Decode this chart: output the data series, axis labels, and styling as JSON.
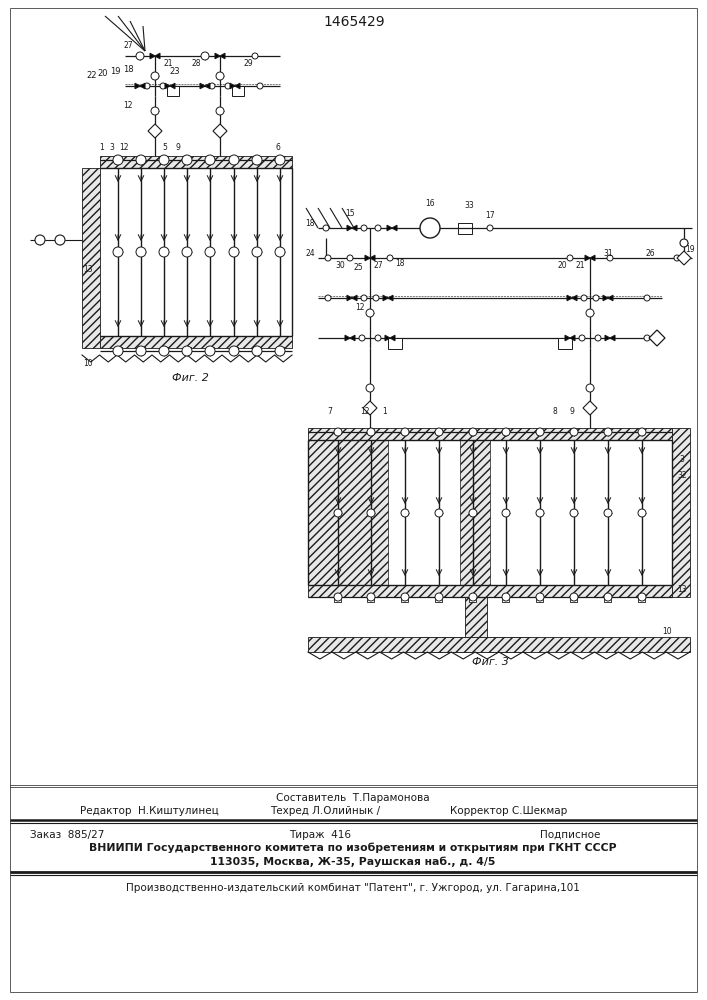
{
  "patent_number": "1465429",
  "bg_color": "#ffffff",
  "line_color": "#1a1a1a",
  "fig2_caption": "Фиг. 2",
  "fig3_caption": "Фиг. 3",
  "footer_line0_center": "Составитель  Т.Парамонова",
  "footer_line1_left": "Редактор  Н.Киштулинец",
  "footer_line1_center": "Техред Л.Олийнык /",
  "footer_line1_center2": "Корректор С.Шекмар",
  "footer_line2_left": "Заказ  885/27",
  "footer_line2_center": "Тираж  416",
  "footer_line2_right": "Подписное",
  "footer_line3": "ВНИИПИ Государственного комитета по изобретениям и открытиям при ГКНТ СССР",
  "footer_line4": "113035, Москва, Ж-35, Раушская наб., д. 4/5",
  "footer_line5": "Производственно-издательский комбинат \"Патент\", г. Ужгород, ул. Гагарина,101"
}
